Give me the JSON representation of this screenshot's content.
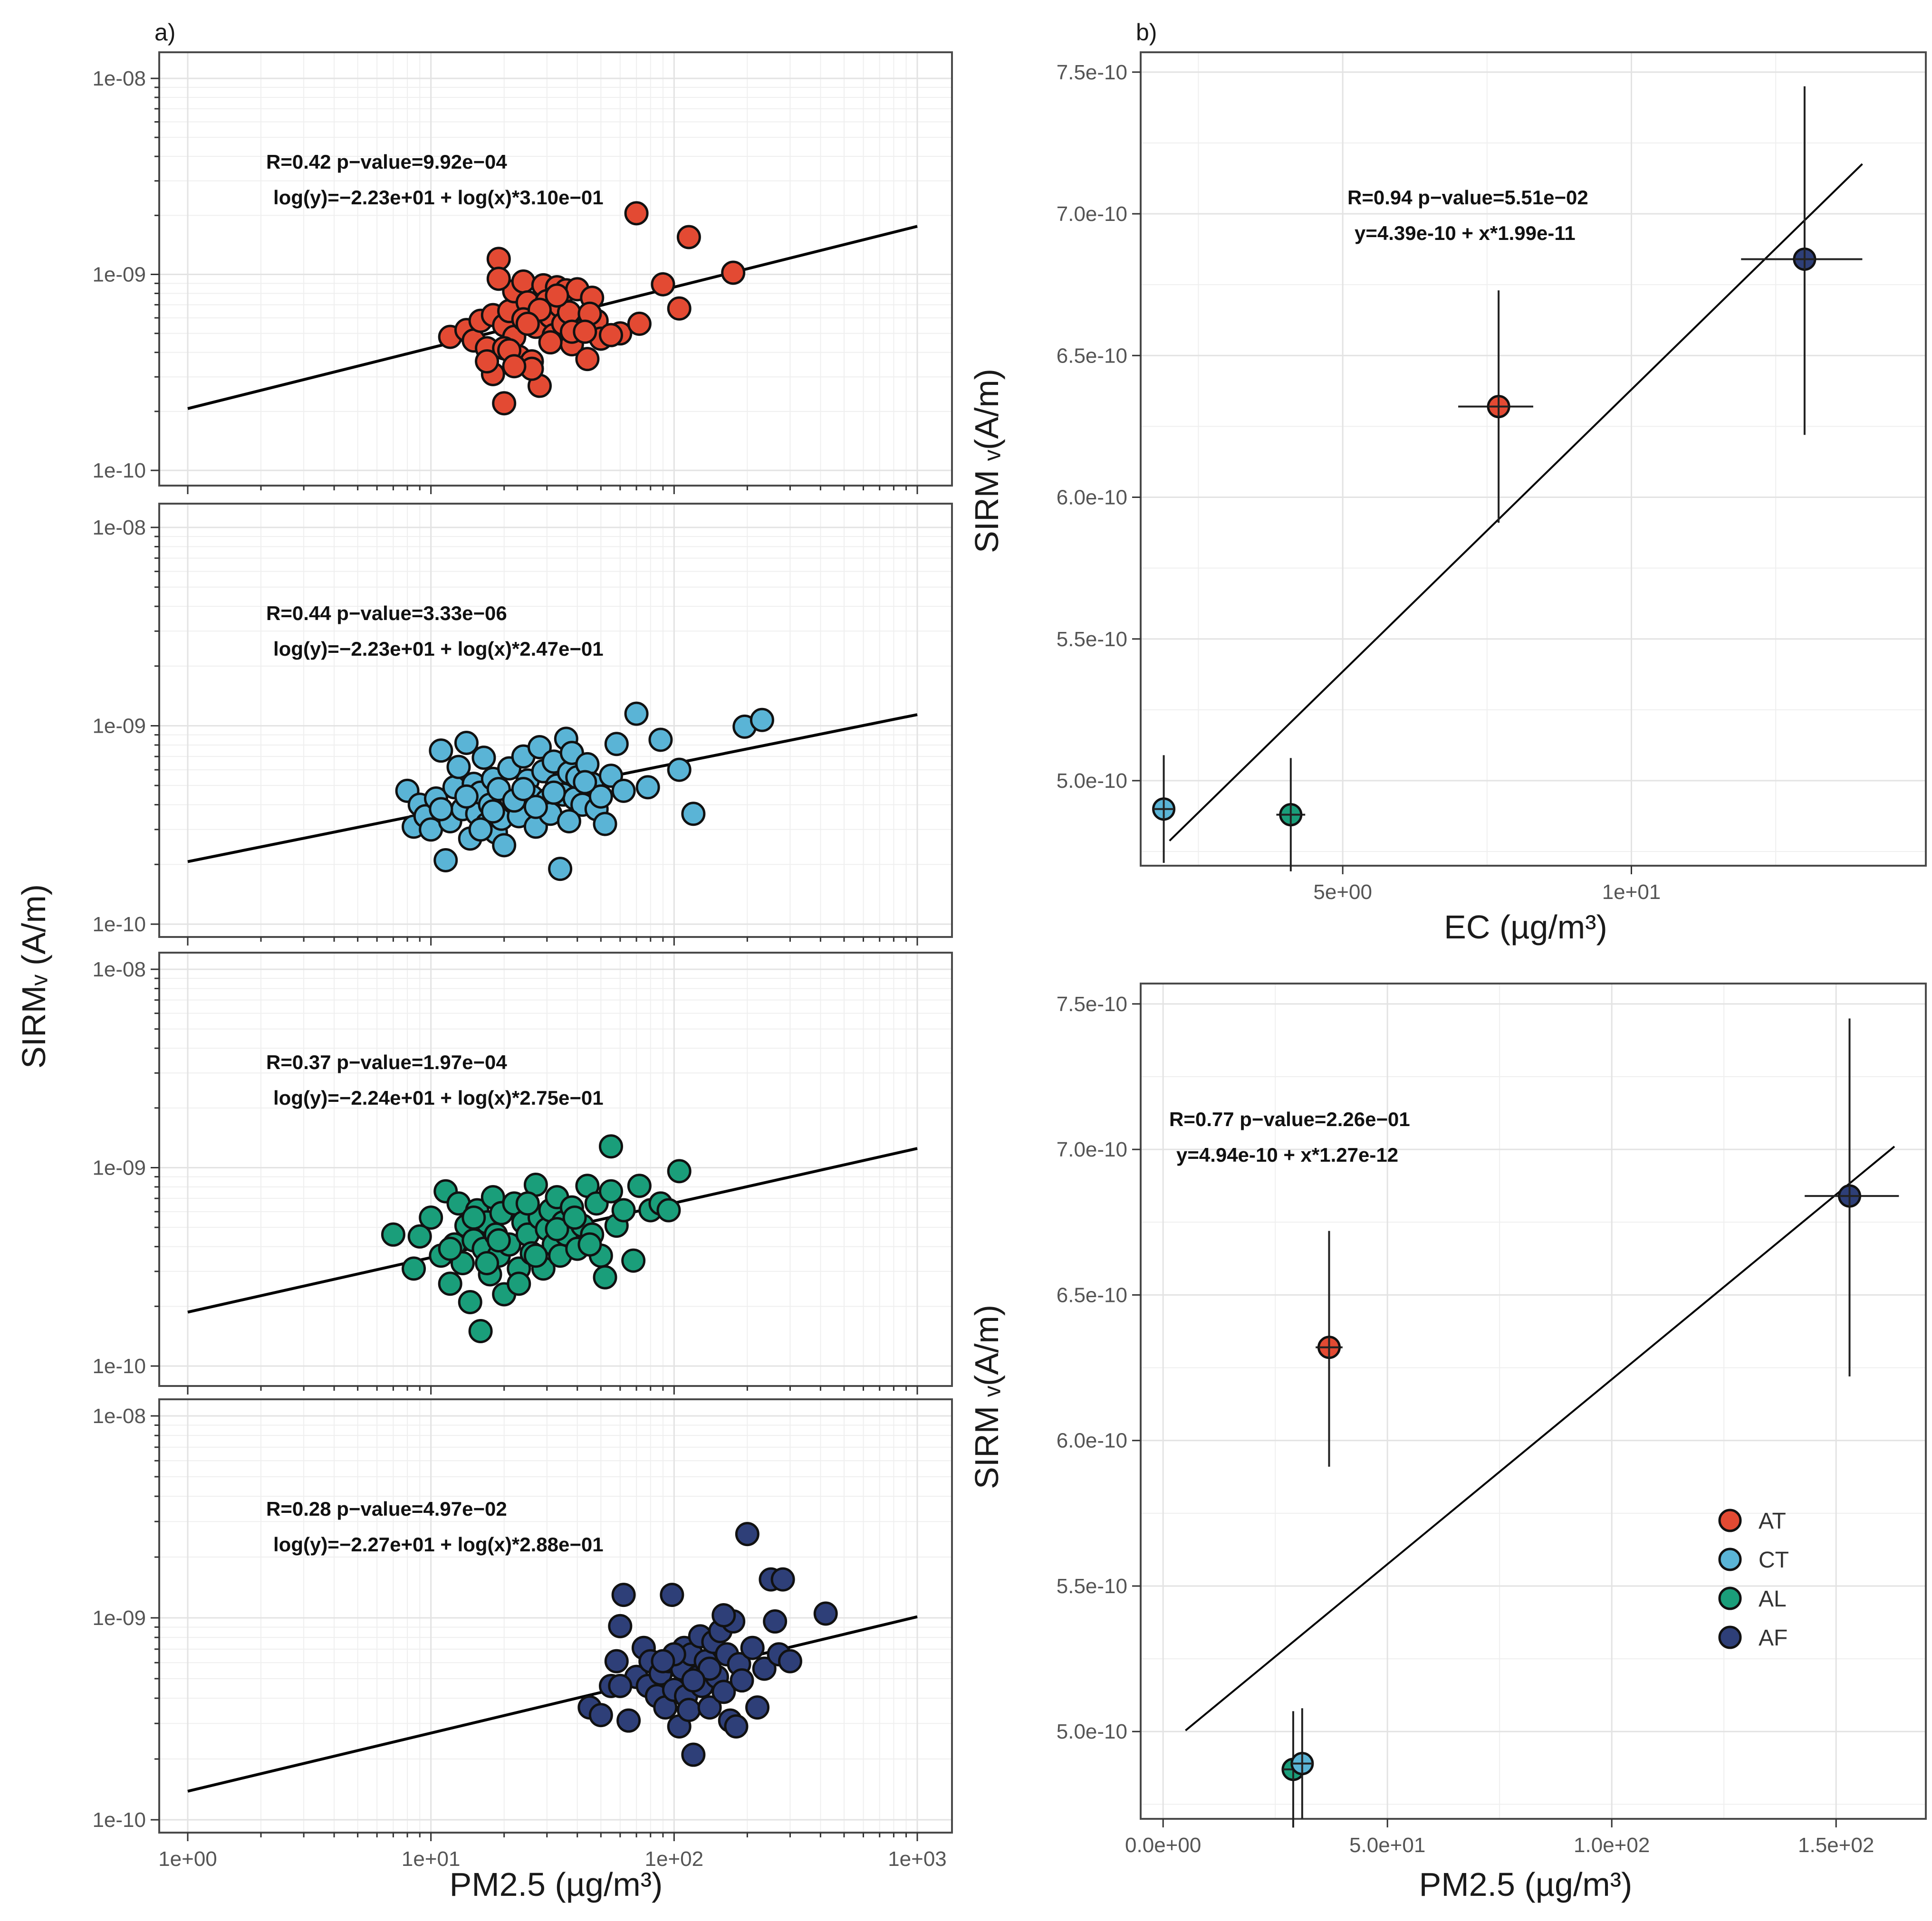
{
  "colors": {
    "AT": "#e34a33",
    "CT": "#5ab4d6",
    "AL": "#1a9e7a",
    "AF": "#2e3f78"
  },
  "labels": {
    "panel_a": "a)",
    "panel_b": "b)",
    "left_ylabel": "SIRMᵥ (A/m)",
    "left_xlabel": "PM2.5 (µg/m³)",
    "rt_ylabel": "SIRM ᵥ(A/m)",
    "rt_xlabel": "EC (µg/m³)",
    "rb_ylabel": "SIRM ᵥ(A/m)",
    "rb_xlabel": "PM2.5 (µg/m³)"
  },
  "chart_data": [
    {
      "id": "a1",
      "type": "scatter",
      "x_scale": "log",
      "y_scale": "log",
      "group": "AT",
      "xlim": [
        1,
        1000
      ],
      "ylim": [
        1e-10,
        1e-08
      ],
      "x_ticks": [
        "1e+00",
        "1e+01",
        "1e+02",
        "1e+03"
      ],
      "y_ticks": [
        "1e-10",
        "1e-09",
        "1e-08"
      ],
      "annotation_line1": "R=0.42     p−value=9.92e−04",
      "annotation_line2": "log(y)=−2.23e+01 + log(x)*3.10e−01",
      "fit": {
        "intercept": -22.3,
        "slope": 0.31
      },
      "x": [
        12,
        14,
        15,
        16,
        17,
        18,
        18,
        19,
        20,
        20,
        21,
        22,
        22,
        23,
        24,
        25,
        26,
        27,
        28,
        29,
        30,
        31,
        32,
        33,
        34,
        35,
        36,
        37,
        38,
        40,
        42,
        44,
        46,
        48,
        50,
        20,
        24,
        28,
        33,
        38,
        45,
        17,
        21,
        26,
        31,
        60,
        72,
        90,
        105,
        115,
        175,
        70,
        19,
        22,
        25,
        43,
        55
      ],
      "y": [
        4.8e-10,
        5.2e-10,
        4.6e-10,
        5.8e-10,
        4.2e-10,
        6.2e-10,
        3.1e-10,
        1.2e-09,
        2.2e-10,
        5.5e-10,
        6.5e-10,
        8.2e-10,
        4.8e-10,
        3.8e-10,
        9.2e-10,
        7.2e-10,
        3.6e-10,
        5.4e-10,
        2.7e-10,
        8.8e-10,
        7.3e-10,
        6.1e-10,
        4.9e-10,
        8.6e-10,
        6.9e-10,
        5.6e-10,
        8.3e-10,
        6.4e-10,
        4.4e-10,
        8.4e-10,
        5.2e-10,
        3.7e-10,
        7.6e-10,
        5.8e-10,
        4.7e-10,
        4.2e-10,
        5.9e-10,
        6.6e-10,
        7.8e-10,
        5.1e-10,
        6.3e-10,
        3.6e-10,
        4.1e-10,
        3.3e-10,
        4.5e-10,
        5e-10,
        5.6e-10,
        8.9e-10,
        6.7e-10,
        1.55e-09,
        1.02e-09,
        2.05e-09,
        9.5e-10,
        3.4e-10,
        5.6e-10,
        5.1e-10,
        4.9e-10
      ]
    },
    {
      "id": "a2",
      "type": "scatter",
      "x_scale": "log",
      "y_scale": "log",
      "group": "CT",
      "xlim": [
        1,
        1000
      ],
      "ylim": [
        1e-10,
        1e-08
      ],
      "x_ticks": [
        "1e+00",
        "1e+01",
        "1e+02",
        "1e+03"
      ],
      "y_ticks": [
        "1e-10",
        "1e-09",
        "1e-08"
      ],
      "annotation_line1": "R=0.44     p−value=3.33e−06",
      "annotation_line2": "log(y)=−2.23e+01 + log(x)*2.47e−01",
      "fit": {
        "intercept": -22.3,
        "slope": 0.247
      },
      "x": [
        8,
        8.5,
        9,
        9.5,
        10,
        10.5,
        11,
        11.5,
        12,
        12.5,
        13,
        13.5,
        14,
        14.5,
        15,
        15.5,
        16,
        16.5,
        17,
        17.5,
        18,
        18.5,
        19,
        19.5,
        20,
        21,
        22,
        23,
        24,
        25,
        26,
        27,
        28,
        29,
        30,
        31,
        32,
        33,
        34,
        35,
        36,
        37,
        38,
        39,
        40,
        42,
        44,
        46,
        48,
        50,
        52,
        55,
        58,
        62,
        70,
        78,
        88,
        105,
        120,
        195,
        230,
        11,
        14,
        18,
        22,
        27,
        32,
        37,
        43,
        16,
        24
      ],
      "y": [
        4.7e-10,
        3.1e-10,
        4e-10,
        3.5e-10,
        3e-10,
        4.3e-10,
        7.5e-10,
        2.1e-10,
        3.3e-10,
        4.9e-10,
        6.2e-10,
        3.8e-10,
        8.2e-10,
        2.7e-10,
        5.1e-10,
        3.6e-10,
        4.6e-10,
        6.9e-10,
        3.2e-10,
        4e-10,
        5.4e-10,
        2.9e-10,
        4.8e-10,
        3.4e-10,
        2.5e-10,
        6.1e-10,
        4.1e-10,
        3.5e-10,
        7e-10,
        5.3e-10,
        4.4e-10,
        3.1e-10,
        7.8e-10,
        5.9e-10,
        4.2e-10,
        3.6e-10,
        6.6e-10,
        5e-10,
        1.9e-10,
        4.5e-10,
        8.6e-10,
        5.8e-10,
        7.3e-10,
        4.3e-10,
        5.5e-10,
        4e-10,
        6.4e-10,
        5.1e-10,
        3.8e-10,
        4.4e-10,
        3.2e-10,
        5.6e-10,
        8.1e-10,
        4.7e-10,
        1.15e-09,
        4.9e-10,
        8.5e-10,
        6e-10,
        3.6e-10,
        9.9e-10,
        1.07e-09,
        3.8e-10,
        4.4e-10,
        3.7e-10,
        4.2e-10,
        3.9e-10,
        4.6e-10,
        3.3e-10,
        5.2e-10,
        3e-10,
        4.8e-10
      ]
    },
    {
      "id": "a3",
      "type": "scatter",
      "x_scale": "log",
      "y_scale": "log",
      "group": "AL",
      "xlim": [
        1,
        1000
      ],
      "ylim": [
        1e-10,
        1e-08
      ],
      "x_ticks": [
        "1e+00",
        "1e+01",
        "1e+02",
        "1e+03"
      ],
      "y_ticks": [
        "1e-10",
        "1e-09",
        "1e-08"
      ],
      "annotation_line1": "R=0.37     p−value=1.97e−04",
      "annotation_line2": "log(y)=−2.24e+01 + log(x)*2.75e−01",
      "fit": {
        "intercept": -22.4,
        "slope": 0.275
      },
      "x": [
        7,
        8.5,
        9,
        10,
        11,
        11.5,
        12,
        12.5,
        13,
        13.5,
        14,
        14.5,
        15,
        15.5,
        16,
        16.5,
        17,
        17.5,
        18,
        18.5,
        19,
        19.5,
        20,
        21,
        22,
        23,
        24,
        25,
        26,
        27,
        28,
        29,
        30,
        31,
        32,
        33,
        34,
        35,
        36,
        38,
        40,
        42,
        44,
        46,
        48,
        50,
        52,
        55,
        58,
        62,
        68,
        72,
        80,
        88,
        95,
        105,
        12,
        15,
        19,
        23,
        27,
        33,
        39,
        45,
        17,
        25,
        55
      ],
      "y": [
        4.6e-10,
        3.1e-10,
        4.5e-10,
        5.6e-10,
        3.6e-10,
        7.6e-10,
        2.6e-10,
        4.1e-10,
        6.6e-10,
        3.3e-10,
        5.1e-10,
        2.1e-10,
        4.3e-10,
        6.1e-10,
        1.5e-10,
        3.9e-10,
        5.3e-10,
        2.9e-10,
        7.1e-10,
        4.6e-10,
        3.6e-10,
        5.9e-10,
        2.3e-10,
        4.1e-10,
        6.6e-10,
        3.1e-10,
        5.3e-10,
        4.6e-10,
        3.7e-10,
        8.2e-10,
        5.6e-10,
        3.1e-10,
        4.9e-10,
        6.1e-10,
        4.1e-10,
        7.1e-10,
        3.6e-10,
        5.3e-10,
        4.6e-10,
        6.3e-10,
        3.9e-10,
        5.1e-10,
        8.1e-10,
        4.6e-10,
        6.6e-10,
        3.6e-10,
        2.8e-10,
        7.6e-10,
        5.1e-10,
        6.1e-10,
        3.4e-10,
        8.1e-10,
        6.1e-10,
        6.6e-10,
        6.1e-10,
        9.6e-10,
        3.9e-10,
        5.6e-10,
        4.3e-10,
        2.6e-10,
        3.6e-10,
        4.9e-10,
        5.6e-10,
        4.1e-10,
        3.3e-10,
        6.6e-10,
        1.28e-09
      ]
    },
    {
      "id": "a4",
      "type": "scatter",
      "x_scale": "log",
      "y_scale": "log",
      "group": "AF",
      "xlim": [
        1,
        1000
      ],
      "ylim": [
        1e-10,
        1e-08
      ],
      "x_ticks": [
        "1e+00",
        "1e+01",
        "1e+02",
        "1e+03"
      ],
      "y_ticks": [
        "1e-10",
        "1e-09",
        "1e-08"
      ],
      "annotation_line1": "R=0.28     p−value=4.97e−02",
      "annotation_line2": "log(y)=−2.27e+01 + log(x)*2.88e−01",
      "fit": {
        "intercept": -22.7,
        "slope": 0.288
      },
      "x": [
        45,
        50,
        55,
        58,
        60,
        62,
        65,
        70,
        75,
        78,
        80,
        85,
        88,
        92,
        95,
        98,
        100,
        105,
        108,
        110,
        112,
        115,
        118,
        120,
        125,
        128,
        130,
        135,
        140,
        145,
        150,
        155,
        160,
        165,
        170,
        175,
        180,
        185,
        190,
        200,
        210,
        220,
        235,
        250,
        260,
        270,
        280,
        300,
        420,
        60,
        100,
        140,
        120,
        90,
        160
      ],
      "y": [
        3.6e-10,
        3.3e-10,
        4.6e-10,
        6.1e-10,
        9.1e-10,
        1.3e-09,
        3.1e-10,
        5.1e-10,
        7.1e-10,
        4.6e-10,
        6.1e-10,
        4.1e-10,
        5.3e-10,
        3.6e-10,
        6.1e-10,
        1.3e-09,
        4.4e-10,
        2.9e-10,
        5.6e-10,
        7.1e-10,
        4.1e-10,
        3.5e-10,
        6.6e-10,
        2.1e-10,
        5.1e-10,
        8.1e-10,
        4.6e-10,
        6.1e-10,
        3.6e-10,
        7.6e-10,
        5.1e-10,
        8.6e-10,
        4.3e-10,
        6.6e-10,
        3.1e-10,
        9.6e-10,
        2.9e-10,
        5.9e-10,
        4.9e-10,
        2.6e-09,
        7.1e-10,
        3.6e-10,
        5.6e-10,
        1.55e-09,
        9.6e-10,
        6.6e-10,
        1.55e-09,
        6.1e-10,
        1.05e-09,
        4.6e-10,
        6.6e-10,
        5.6e-10,
        4.9e-10,
        6.1e-10,
        1.03e-09
      ]
    },
    {
      "id": "b_top",
      "type": "scatter",
      "xlim": [
        1.5,
        15.1
      ],
      "ylim": [
        4.7e-10,
        7.57e-10
      ],
      "x_ticks": [
        "5e+00",
        "1e+01"
      ],
      "y_ticks": [
        "5.0e-10",
        "5.5e-10",
        "6.0e-10",
        "6.5e-10",
        "7.0e-10",
        "7.5e-10"
      ],
      "annotation_line1": "R=0.94     p−value=5.51e−02",
      "annotation_line2": "y=4.39e-10 + x*1.99e-11",
      "fit": {
        "intercept": 4.39e-10,
        "slope": 1.99e-11,
        "x_range": [
          2.0,
          14.0
        ]
      },
      "points": [
        {
          "group": "CT",
          "x": 1.9,
          "y": 4.9e-10,
          "xerr": [
            1.85,
            1.95
          ],
          "yerr": [
            4.71e-10,
            5.09e-10
          ]
        },
        {
          "group": "AL",
          "x": 4.1,
          "y": 4.88e-10,
          "xerr": [
            3.85,
            4.35
          ],
          "yerr": [
            4.68e-10,
            5.08e-10
          ]
        },
        {
          "group": "AT",
          "x": 7.7,
          "y": 6.32e-10,
          "xerr": [
            7.0,
            8.3
          ],
          "yerr": [
            5.91e-10,
            6.73e-10
          ]
        },
        {
          "group": "AF",
          "x": 13.0,
          "y": 6.84e-10,
          "xerr": [
            11.9,
            14.0
          ],
          "yerr": [
            6.22e-10,
            7.45e-10
          ]
        }
      ]
    },
    {
      "id": "b_bottom",
      "type": "scatter",
      "xlim": [
        -5,
        170
      ],
      "ylim": [
        4.7e-10,
        7.57e-10
      ],
      "x_ticks": [
        "0.0e+00",
        "5.0e+01",
        "1.0e+02",
        "1.5e+02"
      ],
      "y_ticks": [
        "5.0e-10",
        "5.5e-10",
        "6.0e-10",
        "6.5e-10",
        "7.0e-10",
        "7.5e-10"
      ],
      "annotation_line1": "R=0.77     p−value=2.26e−01",
      "annotation_line2": "y=4.94e-10 + x*1.27e-12",
      "fit": {
        "intercept": 4.94e-10,
        "slope": 1.27e-12,
        "x_range": [
          5,
          163
        ]
      },
      "points": [
        {
          "group": "AL",
          "x": 29,
          "y": 4.87e-10,
          "xerr": [
            27.5,
            30.5
          ],
          "yerr": [
            4.67e-10,
            5.07e-10
          ]
        },
        {
          "group": "CT",
          "x": 31,
          "y": 4.89e-10,
          "xerr": [
            29,
            33
          ],
          "yerr": [
            4.7e-10,
            5.08e-10
          ]
        },
        {
          "group": "AT",
          "x": 37,
          "y": 6.32e-10,
          "xerr": [
            34,
            40
          ],
          "yerr": [
            5.91e-10,
            6.72e-10
          ]
        },
        {
          "group": "AF",
          "x": 153,
          "y": 6.84e-10,
          "xerr": [
            143,
            164
          ],
          "yerr": [
            6.22e-10,
            7.45e-10
          ]
        }
      ],
      "legend": [
        "AT",
        "CT",
        "AL",
        "AF"
      ],
      "legend_position": "bottom-right"
    }
  ]
}
